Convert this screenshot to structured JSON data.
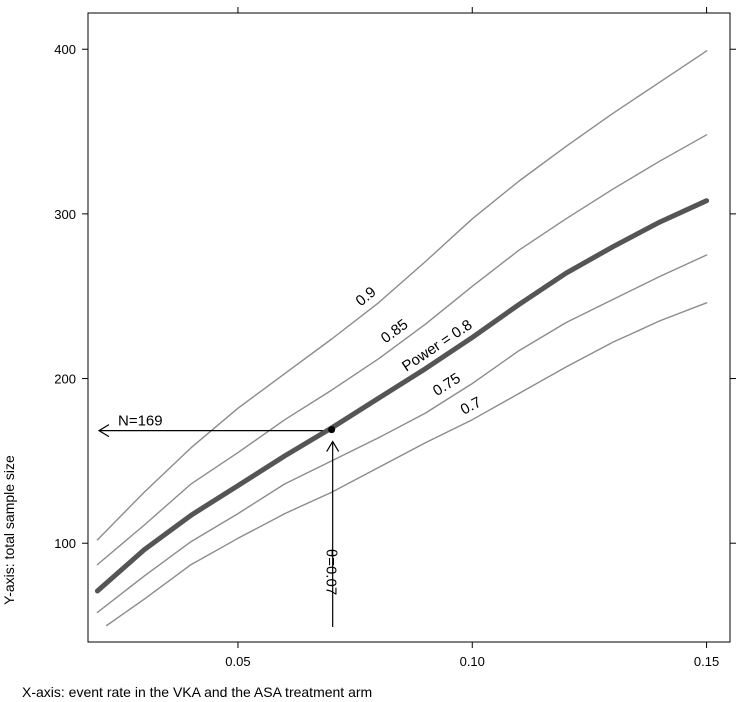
{
  "chart_data": {
    "type": "line",
    "title": "",
    "xlabel": "X-axis: event rate in the VKA and the ASA treatment arm",
    "ylabel": "Y-axis: total sample size",
    "xlim": [
      0.018,
      0.155
    ],
    "ylim": [
      40,
      422
    ],
    "xticks": [
      0.05,
      0.1,
      0.15
    ],
    "xtick_labels": [
      "0.05",
      "0.10",
      "0.15"
    ],
    "yticks": [
      100,
      200,
      300,
      400
    ],
    "ytick_labels": [
      "100",
      "200",
      "300",
      "400"
    ],
    "grid": false,
    "series": [
      {
        "name": "0.9",
        "color": "#8c8c8c",
        "x": [
          0.02,
          0.03,
          0.04,
          0.05,
          0.06,
          0.07,
          0.08,
          0.09,
          0.1,
          0.11,
          0.12,
          0.13,
          0.14,
          0.15
        ],
        "y": [
          102,
          131,
          158,
          182,
          203,
          224,
          246,
          271,
          297,
          320,
          341,
          361,
          380,
          399
        ]
      },
      {
        "name": "0.85",
        "color": "#8c8c8c",
        "x": [
          0.02,
          0.03,
          0.04,
          0.05,
          0.06,
          0.07,
          0.08,
          0.09,
          0.1,
          0.11,
          0.12,
          0.13,
          0.14,
          0.15
        ],
        "y": [
          87,
          111,
          136,
          155,
          175,
          193,
          212,
          233,
          256,
          278,
          297,
          315,
          332,
          348
        ]
      },
      {
        "name": "Power = 0.8",
        "color": "#555555",
        "x": [
          0.02,
          0.03,
          0.04,
          0.05,
          0.06,
          0.07,
          0.08,
          0.09,
          0.1,
          0.11,
          0.12,
          0.13,
          0.14,
          0.15
        ],
        "y": [
          71,
          96,
          117,
          135,
          153,
          170,
          188,
          206,
          225,
          245,
          264,
          280,
          295,
          308
        ]
      },
      {
        "name": "0.75",
        "color": "#8c8c8c",
        "x": [
          0.02,
          0.03,
          0.04,
          0.05,
          0.06,
          0.07,
          0.08,
          0.09,
          0.1,
          0.11,
          0.12,
          0.13,
          0.14,
          0.15
        ],
        "y": [
          58,
          80,
          101,
          118,
          136,
          150,
          164,
          179,
          197,
          217,
          234,
          248,
          262,
          275
        ]
      },
      {
        "name": "0.7",
        "color": "#8c8c8c",
        "x": [
          0.022,
          0.03,
          0.04,
          0.05,
          0.06,
          0.07,
          0.08,
          0.09,
          0.1,
          0.11,
          0.12,
          0.13,
          0.14,
          0.15
        ],
        "y": [
          50,
          66,
          87,
          103,
          118,
          131,
          146,
          161,
          175,
          191,
          207,
          222,
          235,
          246
        ]
      }
    ],
    "annotations": {
      "point": {
        "x": 0.07,
        "y": 169
      },
      "n_label": "N=169",
      "theta_label": "θ=0.07"
    }
  }
}
